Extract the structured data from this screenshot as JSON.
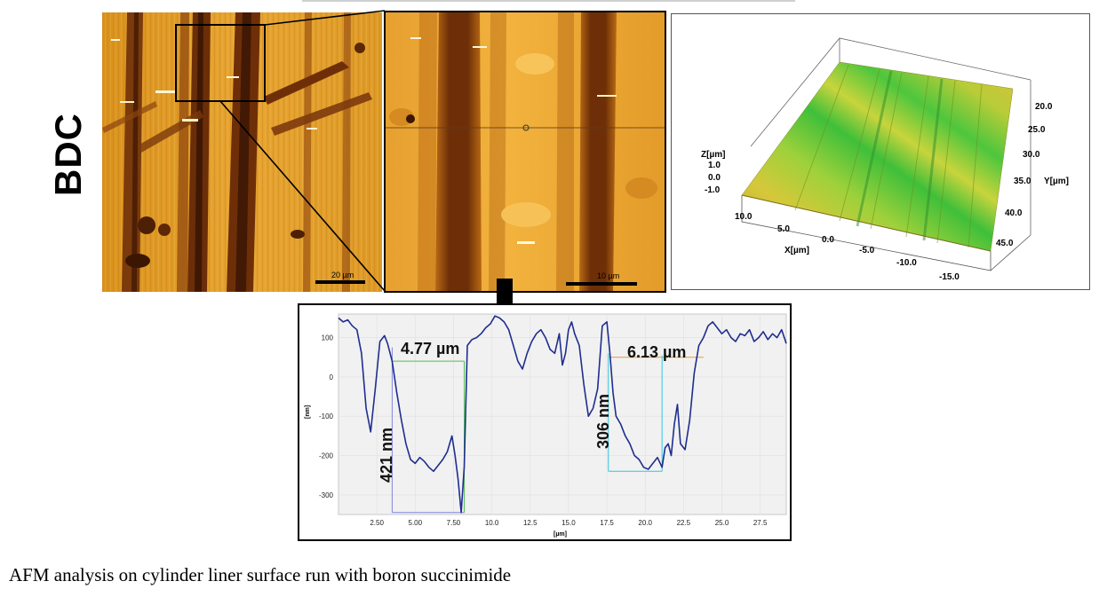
{
  "side_label": "BDC",
  "caption": "AFM analysis on cylinder liner surface run with boron succinimide",
  "afm_overview": {
    "scalebar_label": "20 µm"
  },
  "afm_zoom": {
    "scalebar_label": "10 µm"
  },
  "surface_3d": {
    "z_axis_label": "Z[µm]",
    "z_ticks": [
      "1.0",
      "0.0",
      "-1.0"
    ],
    "x_axis_label": "X[µm]",
    "x_ticks": [
      "10.0",
      "5.0",
      "0.0",
      "-5.0",
      "-10.0",
      "-15.0"
    ],
    "y_axis_label": "Y[µm]",
    "y_ticks": [
      "20.0",
      "25.0",
      "30.0",
      "35.0",
      "40.0",
      "45.0"
    ]
  },
  "colors": {
    "profile_line": "#1f2d8f",
    "green_marker": "#4fbf4f",
    "orange_marker": "#e39a3a",
    "cyan_marker": "#33c6e0",
    "purple_marker": "#7f86e0"
  },
  "chart_data": {
    "type": "line",
    "xlabel": "[µm]",
    "ylabel": "[nm]",
    "xlim": [
      0,
      29.2
    ],
    "ylim": [
      -350,
      160
    ],
    "x_ticks": [
      "2.50",
      "5.00",
      "7.50",
      "10.0",
      "12.5",
      "15.0",
      "17.5",
      "20.0",
      "22.5",
      "25.0",
      "27.5"
    ],
    "y_ticks": [
      "100",
      "0",
      "-100",
      "-200",
      "-300"
    ],
    "grid": true,
    "annotations": [
      {
        "text": "4.77 µm"
      },
      {
        "text": "421 nm"
      },
      {
        "text": "6.13 µm"
      },
      {
        "text": "306 nm"
      }
    ],
    "series": [
      {
        "x": [
          0.0,
          0.3,
          0.6,
          0.9,
          1.2,
          1.5,
          1.8,
          2.1,
          2.4,
          2.7,
          3.0,
          3.2,
          3.5,
          3.8,
          4.1,
          4.4,
          4.7,
          5.0,
          5.3,
          5.6,
          5.9,
          6.2,
          6.5,
          6.8,
          7.1,
          7.4,
          7.6,
          7.8,
          8.0,
          8.2,
          8.4,
          8.7,
          9.0,
          9.3,
          9.6,
          9.9,
          10.2,
          10.5,
          10.8,
          11.1,
          11.4,
          11.7,
          12.0,
          12.3,
          12.6,
          12.9,
          13.2,
          13.5,
          13.8,
          14.1,
          14.4,
          14.6,
          14.8,
          15.0,
          15.2,
          15.4,
          15.7,
          16.0,
          16.3,
          16.6,
          16.9,
          17.2,
          17.5,
          17.7,
          17.9,
          18.1,
          18.4,
          18.7,
          19.0,
          19.3,
          19.6,
          19.9,
          20.2,
          20.5,
          20.8,
          21.1,
          21.3,
          21.5,
          21.7,
          21.9,
          22.1,
          22.3,
          22.6,
          22.9,
          23.2,
          23.5,
          23.8,
          24.1,
          24.4,
          24.7,
          25.0,
          25.3,
          25.6,
          25.9,
          26.2,
          26.5,
          26.8,
          27.1,
          27.4,
          27.7,
          28.0,
          28.3,
          28.6,
          28.9,
          29.2
        ],
        "y": [
          150,
          140,
          145,
          130,
          120,
          60,
          -80,
          -140,
          -30,
          90,
          105,
          85,
          40,
          -40,
          -110,
          -170,
          -210,
          -220,
          -205,
          -215,
          -230,
          -240,
          -225,
          -210,
          -190,
          -150,
          -200,
          -260,
          -345,
          -230,
          80,
          95,
          100,
          110,
          125,
          135,
          155,
          150,
          140,
          120,
          80,
          40,
          20,
          60,
          90,
          110,
          120,
          100,
          70,
          60,
          110,
          30,
          60,
          120,
          140,
          110,
          80,
          -20,
          -100,
          -80,
          -30,
          130,
          140,
          60,
          -40,
          -100,
          -120,
          -150,
          -170,
          -200,
          -210,
          -230,
          -235,
          -220,
          -205,
          -230,
          -180,
          -170,
          -200,
          -120,
          -70,
          -170,
          -185,
          -110,
          10,
          80,
          100,
          130,
          140,
          125,
          110,
          120,
          100,
          90,
          110,
          105,
          120,
          90,
          100,
          115,
          95,
          110,
          100,
          120,
          85
        ]
      }
    ]
  }
}
